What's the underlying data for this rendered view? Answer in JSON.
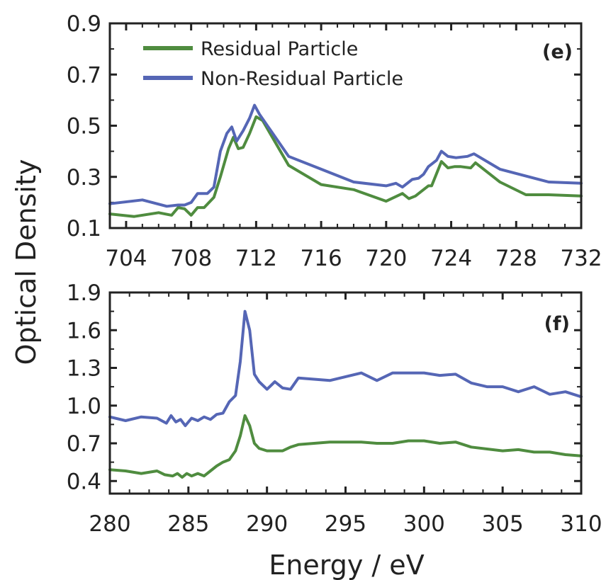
{
  "colors": {
    "residual": "#4f8c3f",
    "non_residual": "#5566b5",
    "axis": "#222222"
  },
  "figure": {
    "ylabel": "Optical Density",
    "xlabel": "Energy / eV"
  },
  "chart_data": [
    {
      "type": "line",
      "panel_label": "(e)",
      "xlim": [
        703,
        732
      ],
      "ylim": [
        0.1,
        0.9
      ],
      "xticks": [
        "704",
        "708",
        "712",
        "716",
        "720",
        "724",
        "728",
        "732"
      ],
      "yticks": [
        "0.1",
        "0.3",
        "0.5",
        "0.7",
        "0.9"
      ],
      "legend": "top-left",
      "series": [
        {
          "name": "Residual Particle",
          "color": "#4f8c3f",
          "x": [
            703,
            704.5,
            706,
            706.8,
            707.2,
            707.6,
            708,
            708.4,
            708.8,
            709.4,
            709.8,
            710.3,
            710.6,
            710.9,
            711.2,
            711.6,
            712,
            712.4,
            714,
            716,
            718,
            720,
            721,
            721.4,
            721.8,
            722.2,
            722.6,
            722.8,
            723.4,
            723.8,
            724.2,
            724.6,
            725.2,
            725.5,
            727,
            728.6,
            730,
            732
          ],
          "y": [
            0.155,
            0.145,
            0.16,
            0.15,
            0.18,
            0.175,
            0.15,
            0.18,
            0.18,
            0.22,
            0.3,
            0.41,
            0.455,
            0.41,
            0.415,
            0.47,
            0.535,
            0.52,
            0.345,
            0.27,
            0.25,
            0.205,
            0.235,
            0.215,
            0.225,
            0.245,
            0.265,
            0.265,
            0.36,
            0.335,
            0.34,
            0.34,
            0.335,
            0.355,
            0.28,
            0.23,
            0.23,
            0.225
          ]
        },
        {
          "name": "Non-Residual Particle",
          "color": "#5566b5",
          "x": [
            703,
            705,
            706.5,
            707.2,
            707.6,
            708,
            708.4,
            709,
            709.4,
            709.8,
            710.2,
            710.5,
            710.8,
            711.2,
            711.6,
            711.9,
            712.2,
            714,
            716,
            718,
            720,
            720.6,
            721,
            721.6,
            722,
            722.3,
            722.6,
            723.1,
            723.4,
            723.8,
            724.3,
            725,
            725.4,
            727,
            730,
            732
          ],
          "y": [
            0.195,
            0.21,
            0.185,
            0.19,
            0.19,
            0.2,
            0.235,
            0.235,
            0.26,
            0.4,
            0.47,
            0.495,
            0.44,
            0.48,
            0.53,
            0.58,
            0.545,
            0.38,
            0.33,
            0.28,
            0.265,
            0.275,
            0.26,
            0.29,
            0.295,
            0.31,
            0.34,
            0.365,
            0.4,
            0.38,
            0.375,
            0.38,
            0.39,
            0.33,
            0.28,
            0.275
          ]
        }
      ]
    },
    {
      "type": "line",
      "panel_label": "(f)",
      "xlim": [
        280,
        310
      ],
      "ylim": [
        0.3,
        1.9
      ],
      "xticks": [
        "280",
        "285",
        "290",
        "295",
        "300",
        "305",
        "310"
      ],
      "yticks": [
        "0.4",
        "0.7",
        "1.0",
        "1.3",
        "1.6",
        "1.9"
      ],
      "series": [
        {
          "name": "Non-Residual Particle",
          "color": "#5566b5",
          "x": [
            280,
            281,
            282,
            283,
            283.6,
            283.9,
            284.2,
            284.5,
            284.8,
            285.2,
            285.6,
            286,
            286.4,
            286.8,
            287.2,
            287.6,
            288,
            288.3,
            288.6,
            288.9,
            289.2,
            289.5,
            290,
            290.5,
            291,
            291.5,
            292,
            293,
            294,
            296,
            297,
            298,
            300,
            301,
            302,
            303,
            304,
            305,
            306,
            307,
            308,
            309,
            310
          ],
          "y": [
            0.91,
            0.88,
            0.91,
            0.9,
            0.86,
            0.92,
            0.87,
            0.89,
            0.84,
            0.9,
            0.88,
            0.91,
            0.89,
            0.93,
            0.94,
            1.03,
            1.08,
            1.35,
            1.75,
            1.6,
            1.25,
            1.19,
            1.13,
            1.19,
            1.14,
            1.13,
            1.22,
            1.21,
            1.2,
            1.26,
            1.2,
            1.26,
            1.26,
            1.24,
            1.25,
            1.18,
            1.15,
            1.15,
            1.11,
            1.15,
            1.09,
            1.11,
            1.07
          ]
        },
        {
          "name": "Residual Particle",
          "color": "#4f8c3f",
          "x": [
            280,
            281,
            282,
            283,
            283.5,
            284,
            284.3,
            284.6,
            284.9,
            285.2,
            285.6,
            286,
            286.4,
            286.8,
            287.2,
            287.6,
            288,
            288.3,
            288.6,
            288.9,
            289.2,
            289.5,
            290,
            290.5,
            291,
            291.5,
            292,
            294,
            296,
            297,
            298,
            299,
            300,
            301,
            302,
            303,
            305,
            306,
            307,
            308,
            309,
            310
          ],
          "y": [
            0.49,
            0.48,
            0.46,
            0.48,
            0.45,
            0.44,
            0.46,
            0.43,
            0.46,
            0.44,
            0.46,
            0.44,
            0.48,
            0.52,
            0.55,
            0.57,
            0.64,
            0.76,
            0.92,
            0.84,
            0.7,
            0.66,
            0.64,
            0.64,
            0.64,
            0.67,
            0.69,
            0.71,
            0.71,
            0.7,
            0.7,
            0.72,
            0.72,
            0.7,
            0.71,
            0.67,
            0.64,
            0.65,
            0.63,
            0.63,
            0.61,
            0.6
          ]
        }
      ]
    }
  ]
}
